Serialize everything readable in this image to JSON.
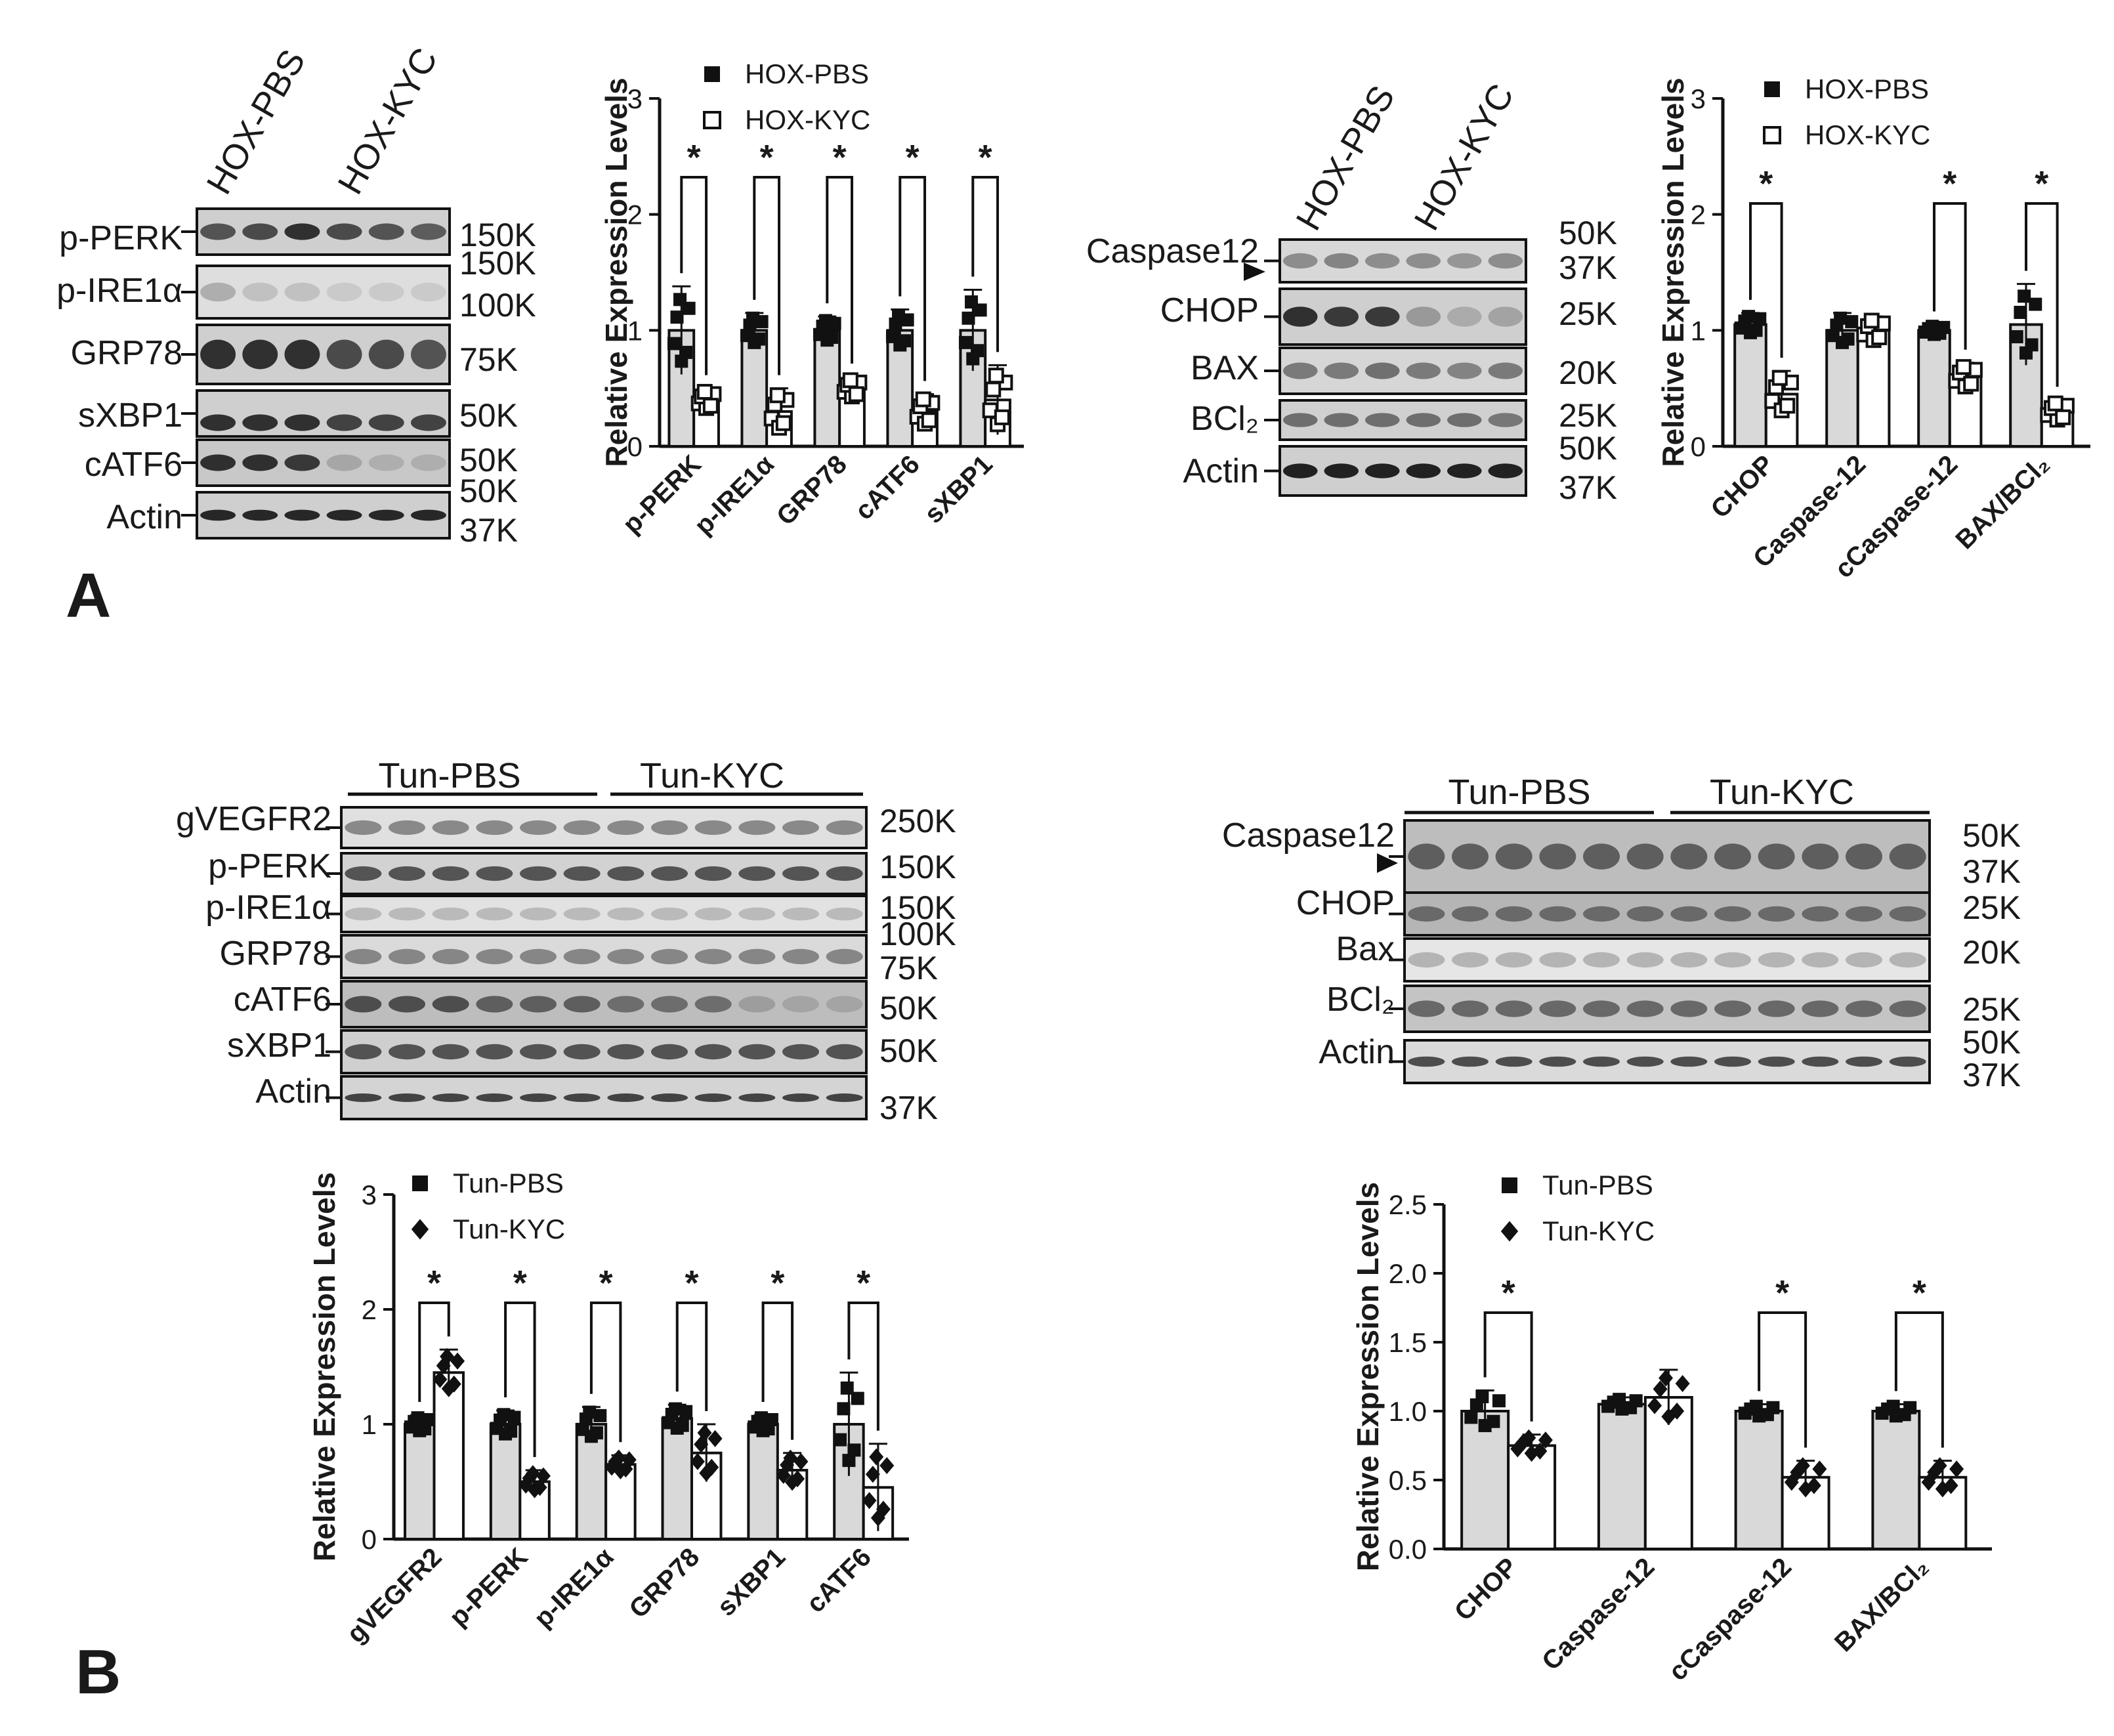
{
  "panel_labels": [
    "A",
    "B"
  ],
  "panelA": {
    "blot_left": {
      "groups": [
        "HOX-PBS",
        "HOX-KYC"
      ],
      "rows": [
        "p-PERK",
        "p-IRE1α",
        "GRP78",
        "sXBP1",
        "cATF6",
        "Actin"
      ],
      "mw": [
        "150K",
        "150K",
        "100K",
        "75K",
        "50K",
        "50K",
        "50K",
        "37K"
      ]
    },
    "blot_right": {
      "groups": [
        "HOX-PBS",
        "HOX-KYC"
      ],
      "rows": [
        "Caspase12",
        "CHOP",
        "BAX",
        "BCl₂",
        "Actin"
      ],
      "mw": [
        "50K",
        "37K",
        "25K",
        "20K",
        "25K",
        "50K",
        "37K"
      ]
    }
  },
  "panelB": {
    "blot_left": {
      "groups": [
        "Tun-PBS",
        "Tun-KYC"
      ],
      "rows": [
        "gVEGFR2",
        "p-PERK",
        "p-IRE1α",
        "GRP78",
        "cATF6",
        "sXBP1",
        "Actin"
      ],
      "mw": [
        "250K",
        "150K",
        "150K",
        "100K",
        "75K",
        "50K",
        "50K",
        "37K"
      ]
    },
    "blot_right": {
      "groups": [
        "Tun-PBS",
        "Tun-KYC"
      ],
      "rows": [
        "Caspase12",
        "CHOP",
        "Bax",
        "BCl₂",
        "Actin"
      ],
      "mw": [
        "50K",
        "37K",
        "25K",
        "20K",
        "25K",
        "50K",
        "37K"
      ]
    }
  },
  "chart_data": [
    {
      "id": "A-ER-stress",
      "type": "bar",
      "ylabel": "Relative Expression Levels",
      "ylim": [
        0,
        3
      ],
      "yticks": [
        "0",
        "1",
        "2",
        "3"
      ],
      "categories": [
        "p-PERK",
        "p-IRE1α",
        "GRP78",
        "cATF6",
        "sXBP1"
      ],
      "legend": [
        "HOX-PBS",
        "HOX-KYC"
      ],
      "significance": [
        "*",
        "*",
        "*",
        "*",
        "*"
      ],
      "series": [
        {
          "name": "HOX-PBS",
          "values": [
            1.0,
            1.0,
            1.0,
            1.0,
            1.0
          ],
          "error": [
            0.38,
            0.15,
            0.12,
            0.18,
            0.35
          ]
        },
        {
          "name": "HOX-KYC",
          "values": [
            0.4,
            0.3,
            0.5,
            0.3,
            0.4
          ],
          "error": [
            0.1,
            0.2,
            0.1,
            0.15,
            0.3
          ]
        }
      ]
    },
    {
      "id": "A-apoptosis",
      "type": "bar",
      "ylabel": "Relative Expression Levels",
      "ylim": [
        0,
        3
      ],
      "yticks": [
        "0",
        "1",
        "2",
        "3"
      ],
      "categories": [
        "CHOP",
        "Caspase-12",
        "cCaspase-12",
        "BAX/BCl₂"
      ],
      "legend": [
        "HOX-PBS",
        "HOX-KYC"
      ],
      "significance": [
        "*",
        "",
        "*",
        "*"
      ],
      "series": [
        {
          "name": "HOX-PBS",
          "values": [
            1.05,
            1.0,
            1.0,
            1.05
          ],
          "error": [
            0.1,
            0.15,
            0.05,
            0.35
          ]
        },
        {
          "name": "HOX-KYC",
          "values": [
            0.45,
            1.0,
            0.6,
            0.3
          ],
          "error": [
            0.2,
            0.12,
            0.12,
            0.1
          ]
        }
      ]
    },
    {
      "id": "B-ER-stress",
      "type": "bar",
      "ylabel": "Relative Expression  Levels",
      "ylim": [
        0,
        3
      ],
      "yticks": [
        "0",
        "1",
        "2",
        "3"
      ],
      "categories": [
        "gVEGFR2",
        "p-PERK",
        "p-IRE1α",
        "GRP78",
        "sXBP1",
        "cATF6"
      ],
      "legend": [
        "Tun-PBS",
        "Tun-KYC"
      ],
      "significance": [
        "*",
        "*",
        "*",
        "*",
        "*",
        "*"
      ],
      "series": [
        {
          "name": "Tun-PBS",
          "values": [
            1.0,
            1.0,
            1.0,
            1.05,
            1.0,
            1.0
          ],
          "error": [
            0.08,
            0.12,
            0.15,
            0.12,
            0.08,
            0.45
          ]
        },
        {
          "name": "Tun-KYC",
          "values": [
            1.45,
            0.5,
            0.65,
            0.75,
            0.6,
            0.45
          ],
          "error": [
            0.2,
            0.1,
            0.08,
            0.25,
            0.15,
            0.38
          ]
        }
      ]
    },
    {
      "id": "B-apoptosis",
      "type": "bar",
      "ylabel": "Relative Expression Levels",
      "ylim": [
        0,
        2.5
      ],
      "yticks": [
        "0.0",
        "0.5",
        "1.0",
        "1.5",
        "2.0",
        "2.5"
      ],
      "categories": [
        "CHOP",
        "Caspase-12",
        "cCaspase-12",
        "BAX/BCl₂"
      ],
      "legend": [
        "Tun-PBS",
        "Tun-KYC"
      ],
      "significance": [
        "*",
        "",
        "*",
        "*"
      ],
      "series": [
        {
          "name": "Tun-PBS",
          "values": [
            1.0,
            1.05,
            1.0,
            1.0
          ],
          "error": [
            0.15,
            0.05,
            0.05,
            0.05
          ]
        },
        {
          "name": "Tun-KYC",
          "values": [
            0.75,
            1.1,
            0.52,
            0.52
          ],
          "error": [
            0.08,
            0.2,
            0.12,
            0.12
          ]
        }
      ]
    }
  ]
}
